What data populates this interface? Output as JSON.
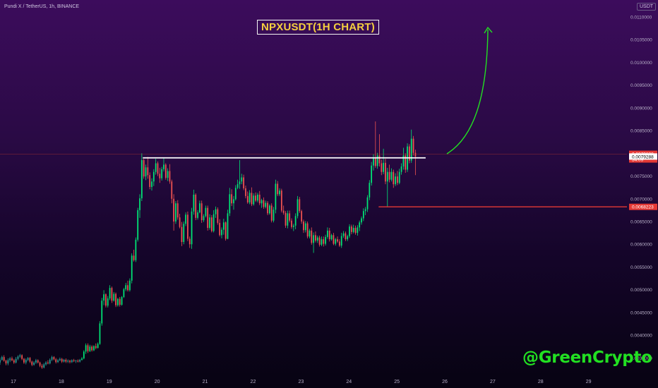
{
  "header": {
    "symbol": "Pundi X / TetherUS, 1h, BINANCE",
    "currency": "USDT"
  },
  "annotations": {
    "title": "NPXUSDT(1H CHART)",
    "watermark": "@GreenCrypto"
  },
  "colors": {
    "up": "#26a69a",
    "up_bright": "#00e676",
    "down": "#ef5350",
    "resistance": "#ffffff",
    "support": "#e53935",
    "arrow": "#22e022",
    "title_text": "#f4d03f"
  },
  "chart_data": {
    "type": "candlestick",
    "xlabel": "",
    "ylabel": "",
    "x_ticks": [
      "17",
      "18",
      "19",
      "20",
      "21",
      "22",
      "23",
      "24",
      "25",
      "26",
      "27",
      "28",
      "29"
    ],
    "y_ticks": [
      "0.0110000",
      "0.0105000",
      "0.0100000",
      "0.0095000",
      "0.0090000",
      "0.0085000",
      "0.0080000",
      "0.0075000",
      "0.0070000",
      "0.0065000",
      "0.0060000",
      "0.0055000",
      "0.0050000",
      "0.0045000",
      "0.0040000",
      "0.0035000"
    ],
    "ylim": [
      0.00315,
      0.01137
    ],
    "xlim_days": [
      16.72,
      29.8
    ],
    "grid": false,
    "price_tags": [
      {
        "label": "0.0079808",
        "sublabel": "34:09",
        "value": 0.0079808,
        "color": "#e53935"
      },
      {
        "label": "0.0079288",
        "value": 0.0079288,
        "color": "#ffffff"
      },
      {
        "label": "0.0068223",
        "value": 0.0068223,
        "color": "#e53935"
      }
    ],
    "levels": [
      {
        "name": "resistance",
        "value": 0.0079,
        "from_day": 19.7,
        "to_day": 25.6
      },
      {
        "name": "support",
        "value": 0.0068223,
        "from_day": 24.62,
        "to_day": 29.8
      }
    ],
    "candles_start_day": 16.72,
    "candle_interval_hours": 1,
    "candles": [
      [
        0.0034,
        0.00351,
        0.00335,
        0.00346
      ],
      [
        0.00346,
        0.00355,
        0.00344,
        0.00352
      ],
      [
        0.00352,
        0.00356,
        0.00342,
        0.00344
      ],
      [
        0.00344,
        0.00346,
        0.00334,
        0.00338
      ],
      [
        0.00338,
        0.00349,
        0.00334,
        0.00345
      ],
      [
        0.00345,
        0.00352,
        0.00341,
        0.00349
      ],
      [
        0.00349,
        0.00353,
        0.00343,
        0.00345
      ],
      [
        0.00345,
        0.00348,
        0.00337,
        0.0034
      ],
      [
        0.0034,
        0.00352,
        0.00338,
        0.00348
      ],
      [
        0.00348,
        0.00356,
        0.00345,
        0.00353
      ],
      [
        0.00353,
        0.00359,
        0.0035,
        0.00356
      ],
      [
        0.00356,
        0.00358,
        0.00345,
        0.00348
      ],
      [
        0.00348,
        0.0035,
        0.00337,
        0.0034
      ],
      [
        0.0034,
        0.00349,
        0.00336,
        0.00346
      ],
      [
        0.00346,
        0.00352,
        0.00343,
        0.0035
      ],
      [
        0.0035,
        0.00352,
        0.00339,
        0.00342
      ],
      [
        0.00342,
        0.00344,
        0.00332,
        0.00335
      ],
      [
        0.00335,
        0.00343,
        0.00333,
        0.0034
      ],
      [
        0.0034,
        0.00348,
        0.00337,
        0.00345
      ],
      [
        0.00345,
        0.00347,
        0.00338,
        0.0034
      ],
      [
        0.0034,
        0.00342,
        0.0033,
        0.00333
      ],
      [
        0.00333,
        0.00337,
        0.00326,
        0.00329
      ],
      [
        0.00329,
        0.00339,
        0.00327,
        0.00336
      ],
      [
        0.00336,
        0.00343,
        0.00333,
        0.0034
      ],
      [
        0.0034,
        0.00345,
        0.00336,
        0.00338
      ],
      [
        0.00338,
        0.00349,
        0.00336,
        0.00346
      ],
      [
        0.00346,
        0.00355,
        0.00343,
        0.00352
      ],
      [
        0.00352,
        0.00354,
        0.00345,
        0.00347
      ],
      [
        0.00347,
        0.0035,
        0.00338,
        0.00341
      ],
      [
        0.00341,
        0.00348,
        0.00339,
        0.00345
      ],
      [
        0.00345,
        0.00351,
        0.00343,
        0.00348
      ],
      [
        0.00348,
        0.0035,
        0.00339,
        0.00342
      ],
      [
        0.00342,
        0.00348,
        0.0034,
        0.00346
      ],
      [
        0.00346,
        0.00349,
        0.00339,
        0.00342
      ],
      [
        0.00342,
        0.00347,
        0.00339,
        0.00344
      ],
      [
        0.00344,
        0.00346,
        0.00338,
        0.00341
      ],
      [
        0.00341,
        0.00347,
        0.00339,
        0.00345
      ],
      [
        0.00345,
        0.00348,
        0.00341,
        0.00343
      ],
      [
        0.00343,
        0.00346,
        0.00339,
        0.00344
      ],
      [
        0.00344,
        0.00347,
        0.0034,
        0.00342
      ],
      [
        0.00342,
        0.00348,
        0.0034,
        0.00346
      ],
      [
        0.00346,
        0.00352,
        0.00344,
        0.00349
      ],
      [
        0.00349,
        0.00367,
        0.00347,
        0.00364
      ],
      [
        0.00364,
        0.00382,
        0.00359,
        0.00378
      ],
      [
        0.00378,
        0.00382,
        0.00361,
        0.00365
      ],
      [
        0.00365,
        0.00379,
        0.00363,
        0.00375
      ],
      [
        0.00375,
        0.00378,
        0.00364,
        0.00367
      ],
      [
        0.00367,
        0.00378,
        0.00365,
        0.00376
      ],
      [
        0.00376,
        0.00382,
        0.00369,
        0.00372
      ],
      [
        0.00372,
        0.00384,
        0.00371,
        0.00381
      ],
      [
        0.00381,
        0.00431,
        0.00379,
        0.00426
      ],
      [
        0.00426,
        0.00482,
        0.00421,
        0.00476
      ],
      [
        0.00476,
        0.00499,
        0.00466,
        0.0049
      ],
      [
        0.0049,
        0.00492,
        0.00461,
        0.00465
      ],
      [
        0.00465,
        0.00486,
        0.00461,
        0.00481
      ],
      [
        0.00481,
        0.0051,
        0.00477,
        0.00504
      ],
      [
        0.00504,
        0.00507,
        0.00471,
        0.00476
      ],
      [
        0.00476,
        0.00495,
        0.00474,
        0.00491
      ],
      [
        0.00491,
        0.00494,
        0.00462,
        0.00466
      ],
      [
        0.00466,
        0.00482,
        0.00463,
        0.0048
      ],
      [
        0.0048,
        0.00484,
        0.00463,
        0.00467
      ],
      [
        0.00467,
        0.00486,
        0.00465,
        0.00484
      ],
      [
        0.00484,
        0.00504,
        0.00482,
        0.00501
      ],
      [
        0.00501,
        0.00515,
        0.00497,
        0.0051
      ],
      [
        0.0051,
        0.0052,
        0.00496,
        0.00499
      ],
      [
        0.00499,
        0.00525,
        0.00496,
        0.0052
      ],
      [
        0.0052,
        0.0058,
        0.00514,
        0.00575
      ],
      [
        0.00575,
        0.00588,
        0.00562,
        0.00565
      ],
      [
        0.00565,
        0.00615,
        0.00561,
        0.0061
      ],
      [
        0.0061,
        0.0068,
        0.00606,
        0.00675
      ],
      [
        0.00675,
        0.0071,
        0.00658,
        0.00701
      ],
      [
        0.00701,
        0.008,
        0.00695,
        0.00785
      ],
      [
        0.00785,
        0.00788,
        0.00744,
        0.00749
      ],
      [
        0.00749,
        0.00775,
        0.00741,
        0.00769
      ],
      [
        0.00769,
        0.00792,
        0.00744,
        0.00752
      ],
      [
        0.00752,
        0.00758,
        0.00721,
        0.00726
      ],
      [
        0.00726,
        0.00745,
        0.00718,
        0.00738
      ],
      [
        0.00738,
        0.00765,
        0.00728,
        0.00759
      ],
      [
        0.00759,
        0.00788,
        0.00753,
        0.00778
      ],
      [
        0.00778,
        0.00782,
        0.0075,
        0.00755
      ],
      [
        0.00755,
        0.00768,
        0.00735,
        0.00745
      ],
      [
        0.00745,
        0.0077,
        0.0074,
        0.00765
      ],
      [
        0.00765,
        0.0079,
        0.0076,
        0.00775
      ],
      [
        0.00775,
        0.00778,
        0.00742,
        0.00746
      ],
      [
        0.00746,
        0.00767,
        0.00739,
        0.00761
      ],
      [
        0.00761,
        0.00776,
        0.00733,
        0.00738
      ],
      [
        0.00738,
        0.00742,
        0.0069,
        0.007
      ],
      [
        0.007,
        0.0071,
        0.0063,
        0.0065
      ],
      [
        0.0065,
        0.00695,
        0.00645,
        0.0069
      ],
      [
        0.0069,
        0.00697,
        0.00654,
        0.00659
      ],
      [
        0.00659,
        0.00667,
        0.00635,
        0.00638
      ],
      [
        0.00638,
        0.00649,
        0.00596,
        0.00605
      ],
      [
        0.00605,
        0.0065,
        0.006,
        0.00645
      ],
      [
        0.00645,
        0.0067,
        0.0064,
        0.00665
      ],
      [
        0.00665,
        0.00672,
        0.00607,
        0.00612
      ],
      [
        0.00612,
        0.00617,
        0.00592,
        0.006
      ],
      [
        0.006,
        0.0068,
        0.0059,
        0.00672
      ],
      [
        0.00672,
        0.0072,
        0.00665,
        0.00709
      ],
      [
        0.00709,
        0.00712,
        0.00653,
        0.00658
      ],
      [
        0.00658,
        0.00675,
        0.00654,
        0.0067
      ],
      [
        0.0067,
        0.00696,
        0.00668,
        0.0069
      ],
      [
        0.0069,
        0.00696,
        0.00647,
        0.00653
      ],
      [
        0.00653,
        0.00666,
        0.00649,
        0.00662
      ],
      [
        0.00662,
        0.00685,
        0.00659,
        0.0068
      ],
      [
        0.0068,
        0.00685,
        0.0063,
        0.00636
      ],
      [
        0.00636,
        0.00666,
        0.00632,
        0.00659
      ],
      [
        0.00659,
        0.00664,
        0.00626,
        0.00629
      ],
      [
        0.00629,
        0.00675,
        0.00626,
        0.00666
      ],
      [
        0.00666,
        0.00683,
        0.00658,
        0.00677
      ],
      [
        0.00677,
        0.00681,
        0.00643,
        0.00647
      ],
      [
        0.00647,
        0.00655,
        0.00617,
        0.0062
      ],
      [
        0.0062,
        0.00637,
        0.00613,
        0.00632
      ],
      [
        0.00632,
        0.00656,
        0.00621,
        0.00648
      ],
      [
        0.00648,
        0.0065,
        0.00608,
        0.00612
      ],
      [
        0.00612,
        0.00676,
        0.00611,
        0.00668
      ],
      [
        0.00668,
        0.00724,
        0.00662,
        0.0071
      ],
      [
        0.0071,
        0.00721,
        0.00684,
        0.0069
      ],
      [
        0.0069,
        0.00706,
        0.00676,
        0.00699
      ],
      [
        0.00699,
        0.0073,
        0.00696,
        0.00724
      ],
      [
        0.00724,
        0.00742,
        0.00721,
        0.00732
      ],
      [
        0.00732,
        0.00785,
        0.00722,
        0.00738
      ],
      [
        0.00738,
        0.00755,
        0.00732,
        0.00747
      ],
      [
        0.00747,
        0.00753,
        0.00719,
        0.00723
      ],
      [
        0.00723,
        0.00729,
        0.00701,
        0.00706
      ],
      [
        0.00706,
        0.00716,
        0.00689,
        0.00692
      ],
      [
        0.00692,
        0.00719,
        0.00688,
        0.00713
      ],
      [
        0.00713,
        0.00725,
        0.00684,
        0.00688
      ],
      [
        0.00688,
        0.00712,
        0.00685,
        0.00707
      ],
      [
        0.00707,
        0.00714,
        0.00693,
        0.00696
      ],
      [
        0.00696,
        0.00713,
        0.00692,
        0.00709
      ],
      [
        0.00709,
        0.00717,
        0.00686,
        0.0069
      ],
      [
        0.0069,
        0.007,
        0.0068,
        0.00697
      ],
      [
        0.00697,
        0.00703,
        0.00678,
        0.00682
      ],
      [
        0.00682,
        0.00696,
        0.00679,
        0.00691
      ],
      [
        0.00691,
        0.00695,
        0.00664,
        0.00668
      ],
      [
        0.00668,
        0.00688,
        0.00665,
        0.00685
      ],
      [
        0.00685,
        0.0069,
        0.00648,
        0.00652
      ],
      [
        0.00652,
        0.00682,
        0.00648,
        0.00676
      ],
      [
        0.00676,
        0.00742,
        0.00668,
        0.00733
      ],
      [
        0.00733,
        0.00739,
        0.00706,
        0.0071
      ],
      [
        0.0071,
        0.00723,
        0.00706,
        0.00718
      ],
      [
        0.00718,
        0.00722,
        0.0067,
        0.00674
      ],
      [
        0.00674,
        0.00685,
        0.00665,
        0.00669
      ],
      [
        0.00669,
        0.00673,
        0.00636,
        0.00641
      ],
      [
        0.00641,
        0.00674,
        0.00635,
        0.00668
      ],
      [
        0.00668,
        0.00674,
        0.00648,
        0.00652
      ],
      [
        0.00652,
        0.00657,
        0.00634,
        0.00638
      ],
      [
        0.00638,
        0.00645,
        0.00629,
        0.00641
      ],
      [
        0.00641,
        0.00668,
        0.00633,
        0.00662
      ],
      [
        0.00662,
        0.00706,
        0.00657,
        0.00699
      ],
      [
        0.00699,
        0.00704,
        0.00669,
        0.00673
      ],
      [
        0.00673,
        0.00676,
        0.00645,
        0.0065
      ],
      [
        0.0065,
        0.00654,
        0.00625,
        0.00631
      ],
      [
        0.00631,
        0.00651,
        0.00626,
        0.00646
      ],
      [
        0.00646,
        0.0065,
        0.00613,
        0.00617
      ],
      [
        0.00617,
        0.00634,
        0.00613,
        0.0063
      ],
      [
        0.0063,
        0.00637,
        0.00599,
        0.00603
      ],
      [
        0.00603,
        0.00626,
        0.00581,
        0.0062
      ],
      [
        0.0062,
        0.00628,
        0.00604,
        0.00608
      ],
      [
        0.00608,
        0.00619,
        0.00603,
        0.00615
      ],
      [
        0.00615,
        0.00619,
        0.00595,
        0.00599
      ],
      [
        0.00599,
        0.00617,
        0.00596,
        0.00611
      ],
      [
        0.00611,
        0.00617,
        0.00595,
        0.00601
      ],
      [
        0.00601,
        0.00621,
        0.00597,
        0.00616
      ],
      [
        0.00616,
        0.00637,
        0.00612,
        0.0063
      ],
      [
        0.0063,
        0.00636,
        0.00606,
        0.00611
      ],
      [
        0.00611,
        0.00623,
        0.00608,
        0.0062
      ],
      [
        0.0062,
        0.00625,
        0.00598,
        0.00601
      ],
      [
        0.00601,
        0.00614,
        0.00597,
        0.00611
      ],
      [
        0.00611,
        0.00617,
        0.00603,
        0.00606
      ],
      [
        0.00606,
        0.00611,
        0.00594,
        0.00597
      ],
      [
        0.00597,
        0.00625,
        0.00592,
        0.00618
      ],
      [
        0.00618,
        0.00629,
        0.00614,
        0.00624
      ],
      [
        0.00624,
        0.00628,
        0.00607,
        0.00611
      ],
      [
        0.00611,
        0.00621,
        0.00607,
        0.00618
      ],
      [
        0.00618,
        0.00644,
        0.00614,
        0.00639
      ],
      [
        0.00639,
        0.00643,
        0.00622,
        0.00627
      ],
      [
        0.00627,
        0.00643,
        0.00624,
        0.00636
      ],
      [
        0.00636,
        0.00641,
        0.00621,
        0.00625
      ],
      [
        0.00625,
        0.00642,
        0.00619,
        0.00637
      ],
      [
        0.00637,
        0.00652,
        0.00629,
        0.00648
      ],
      [
        0.00648,
        0.00661,
        0.00643,
        0.00657
      ],
      [
        0.00657,
        0.00679,
        0.00651,
        0.00673
      ],
      [
        0.00673,
        0.00682,
        0.00664,
        0.00677
      ],
      [
        0.00677,
        0.00708,
        0.00671,
        0.00703
      ],
      [
        0.00703,
        0.00741,
        0.00697,
        0.00735
      ],
      [
        0.00735,
        0.00781,
        0.00729,
        0.00773
      ],
      [
        0.00773,
        0.00798,
        0.00762,
        0.00789
      ],
      [
        0.00789,
        0.0087,
        0.00768,
        0.00772
      ],
      [
        0.00772,
        0.00801,
        0.00766,
        0.00795
      ],
      [
        0.00795,
        0.00842,
        0.00771,
        0.00778
      ],
      [
        0.00778,
        0.00786,
        0.00752,
        0.00759
      ],
      [
        0.00759,
        0.0081,
        0.00754,
        0.00779
      ],
      [
        0.00779,
        0.00788,
        0.00732,
        0.00738
      ],
      [
        0.00738,
        0.00768,
        0.00682,
        0.00759
      ],
      [
        0.00759,
        0.00775,
        0.00736,
        0.00742
      ],
      [
        0.00742,
        0.00767,
        0.00738,
        0.00759
      ],
      [
        0.00759,
        0.00764,
        0.00724,
        0.00732
      ],
      [
        0.00732,
        0.00756,
        0.00728,
        0.00749
      ],
      [
        0.00749,
        0.00761,
        0.0073,
        0.00735
      ],
      [
        0.00735,
        0.00766,
        0.00732,
        0.00759
      ],
      [
        0.00759,
        0.00778,
        0.00753,
        0.00771
      ],
      [
        0.00771,
        0.00812,
        0.00764,
        0.00795
      ],
      [
        0.00795,
        0.008,
        0.00757,
        0.00764
      ],
      [
        0.00764,
        0.00822,
        0.00759,
        0.00815
      ],
      [
        0.00815,
        0.0082,
        0.00778,
        0.00784
      ],
      [
        0.00784,
        0.00852,
        0.00779,
        0.00832
      ],
      [
        0.00832,
        0.00838,
        0.00795,
        0.00801
      ],
      [
        0.00801,
        0.00808,
        0.00752,
        0.0079288
      ]
    ]
  }
}
